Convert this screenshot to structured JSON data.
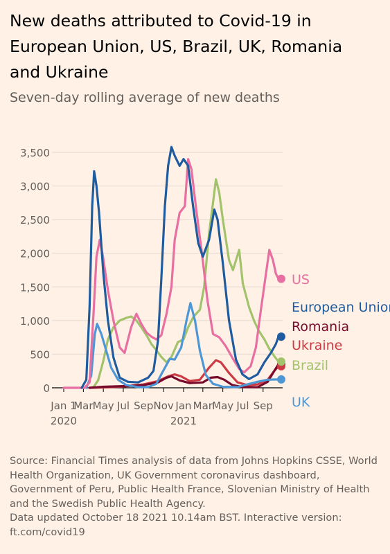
{
  "header": {
    "title": "New deaths attributed to Covid-19 in European Union, US, Brazil, UK, Romania and Ukraine",
    "subtitle": "Seven-day rolling average of new deaths"
  },
  "footer": {
    "source": "Source: Financial Times analysis of data from Johns Hopkins CSSE, World Health Organization, UK Government coronavirus dashboard, Government of Peru, Public Health France, Slovenian Ministry of Health and the Swedish Public Health Agency.",
    "updated": "Data updated October 18 2021 10.14am BST. Interactive version: ft.com/covid19"
  },
  "chart_data": {
    "type": "line",
    "xlim": [
      "2020-01-01",
      "2021-10-18"
    ],
    "ylim": [
      0,
      3500
    ],
    "yticks": [
      0,
      500,
      1000,
      1500,
      2000,
      2500,
      3000,
      3500
    ],
    "ytick_labels": [
      "0",
      "500",
      "1,000",
      "1,500",
      "2,000",
      "2,500",
      "3,000",
      "3,500"
    ],
    "xticks": [
      {
        "date": "2020-01-01",
        "label": "Jan 1",
        "year": "2020"
      },
      {
        "date": "2020-03-01",
        "label": "Mar",
        "year": ""
      },
      {
        "date": "2020-05-01",
        "label": "May",
        "year": ""
      },
      {
        "date": "2020-07-01",
        "label": "Jul",
        "year": ""
      },
      {
        "date": "2020-09-01",
        "label": "Sep",
        "year": ""
      },
      {
        "date": "2020-11-01",
        "label": "Nov",
        "year": ""
      },
      {
        "date": "2021-01-01",
        "label": "Jan",
        "year": "2021"
      },
      {
        "date": "2021-03-01",
        "label": "Mar",
        "year": ""
      },
      {
        "date": "2021-05-01",
        "label": "May",
        "year": ""
      },
      {
        "date": "2021-07-01",
        "label": "Jul",
        "year": ""
      },
      {
        "date": "2021-09-01",
        "label": "Sep",
        "year": ""
      }
    ],
    "grid": true,
    "legend": "direct labels at right",
    "series": [
      {
        "name": "Brazil",
        "color": "#a2c26b",
        "points": [
          [
            "2020-03-20",
            0
          ],
          [
            "2020-04-01",
            10
          ],
          [
            "2020-04-15",
            110
          ],
          [
            "2020-05-01",
            400
          ],
          [
            "2020-05-15",
            720
          ],
          [
            "2020-06-01",
            900
          ],
          [
            "2020-06-20",
            1000
          ],
          [
            "2020-07-10",
            1040
          ],
          [
            "2020-07-25",
            1060
          ],
          [
            "2020-08-10",
            1000
          ],
          [
            "2020-08-25",
            900
          ],
          [
            "2020-09-10",
            780
          ],
          [
            "2020-09-25",
            650
          ],
          [
            "2020-10-10",
            560
          ],
          [
            "2020-10-25",
            460
          ],
          [
            "2020-11-10",
            380
          ],
          [
            "2020-11-25",
            460
          ],
          [
            "2020-12-15",
            680
          ],
          [
            "2021-01-01",
            720
          ],
          [
            "2021-01-15",
            900
          ],
          [
            "2021-02-01",
            1060
          ],
          [
            "2021-02-20",
            1160
          ],
          [
            "2021-03-05",
            1500
          ],
          [
            "2021-03-20",
            2300
          ],
          [
            "2021-04-01",
            2750
          ],
          [
            "2021-04-10",
            3100
          ],
          [
            "2021-04-20",
            2900
          ],
          [
            "2021-05-01",
            2500
          ],
          [
            "2021-05-20",
            1900
          ],
          [
            "2021-06-01",
            1750
          ],
          [
            "2021-06-20",
            2050
          ],
          [
            "2021-07-01",
            1550
          ],
          [
            "2021-07-20",
            1200
          ],
          [
            "2021-08-05",
            990
          ],
          [
            "2021-08-20",
            840
          ],
          [
            "2021-09-05",
            720
          ],
          [
            "2021-09-20",
            580
          ],
          [
            "2021-10-05",
            470
          ],
          [
            "2021-10-18",
            390
          ]
        ]
      },
      {
        "name": "Ukraine",
        "color": "#cc3a44",
        "points": [
          [
            "2020-03-20",
            0
          ],
          [
            "2020-05-01",
            5
          ],
          [
            "2020-07-01",
            20
          ],
          [
            "2020-09-01",
            50
          ],
          [
            "2020-10-15",
            100
          ],
          [
            "2020-11-15",
            170
          ],
          [
            "2020-12-05",
            200
          ],
          [
            "2020-12-25",
            170
          ],
          [
            "2021-01-20",
            100
          ],
          [
            "2021-02-20",
            120
          ],
          [
            "2021-03-20",
            300
          ],
          [
            "2021-04-10",
            410
          ],
          [
            "2021-04-25",
            380
          ],
          [
            "2021-05-20",
            220
          ],
          [
            "2021-06-15",
            80
          ],
          [
            "2021-07-15",
            40
          ],
          [
            "2021-08-15",
            50
          ],
          [
            "2021-09-15",
            120
          ],
          [
            "2021-10-05",
            250
          ],
          [
            "2021-10-18",
            320
          ]
        ]
      },
      {
        "name": "Romania",
        "color": "#780a2c",
        "points": [
          [
            "2020-03-20",
            0
          ],
          [
            "2020-05-01",
            15
          ],
          [
            "2020-07-01",
            25
          ],
          [
            "2020-09-01",
            40
          ],
          [
            "2020-10-15",
            80
          ],
          [
            "2020-11-10",
            150
          ],
          [
            "2020-11-25",
            170
          ],
          [
            "2020-12-20",
            110
          ],
          [
            "2021-01-20",
            70
          ],
          [
            "2021-03-01",
            80
          ],
          [
            "2021-03-25",
            150
          ],
          [
            "2021-04-15",
            160
          ],
          [
            "2021-05-05",
            120
          ],
          [
            "2021-05-30",
            40
          ],
          [
            "2021-07-01",
            10
          ],
          [
            "2021-08-15",
            8
          ],
          [
            "2021-09-15",
            90
          ],
          [
            "2021-10-05",
            250
          ],
          [
            "2021-10-18",
            350
          ]
        ]
      },
      {
        "name": "UK",
        "color": "#4e97d7",
        "points": [
          [
            "2020-03-10",
            0
          ],
          [
            "2020-03-25",
            180
          ],
          [
            "2020-04-05",
            800
          ],
          [
            "2020-04-12",
            950
          ],
          [
            "2020-04-25",
            800
          ],
          [
            "2020-05-10",
            550
          ],
          [
            "2020-05-25",
            300
          ],
          [
            "2020-06-15",
            120
          ],
          [
            "2020-07-10",
            40
          ],
          [
            "2020-08-15",
            10
          ],
          [
            "2020-09-15",
            10
          ],
          [
            "2020-10-10",
            60
          ],
          [
            "2020-10-25",
            200
          ],
          [
            "2020-11-20",
            430
          ],
          [
            "2020-12-05",
            420
          ],
          [
            "2020-12-25",
            600
          ],
          [
            "2021-01-10",
            1000
          ],
          [
            "2021-01-22",
            1260
          ],
          [
            "2021-02-05",
            1000
          ],
          [
            "2021-02-20",
            550
          ],
          [
            "2021-03-10",
            190
          ],
          [
            "2021-04-01",
            60
          ],
          [
            "2021-05-01",
            15
          ],
          [
            "2021-06-15",
            10
          ],
          [
            "2021-07-15",
            50
          ],
          [
            "2021-08-15",
            90
          ],
          [
            "2021-09-15",
            120
          ],
          [
            "2021-10-18",
            125
          ]
        ]
      },
      {
        "name": "US",
        "color": "#e86fa1",
        "points": [
          [
            "2020-01-01",
            0
          ],
          [
            "2020-03-05",
            0
          ],
          [
            "2020-03-20",
            80
          ],
          [
            "2020-04-01",
            1100
          ],
          [
            "2020-04-10",
            1950
          ],
          [
            "2020-04-20",
            2200
          ],
          [
            "2020-04-30",
            1950
          ],
          [
            "2020-05-15",
            1450
          ],
          [
            "2020-06-01",
            1000
          ],
          [
            "2020-06-20",
            600
          ],
          [
            "2020-07-05",
            520
          ],
          [
            "2020-07-25",
            900
          ],
          [
            "2020-08-10",
            1100
          ],
          [
            "2020-08-25",
            950
          ],
          [
            "2020-09-10",
            820
          ],
          [
            "2020-09-25",
            760
          ],
          [
            "2020-10-10",
            720
          ],
          [
            "2020-10-25",
            780
          ],
          [
            "2020-11-10",
            1100
          ],
          [
            "2020-11-25",
            1500
          ],
          [
            "2020-12-05",
            2200
          ],
          [
            "2020-12-20",
            2600
          ],
          [
            "2021-01-05",
            2700
          ],
          [
            "2021-01-15",
            3400
          ],
          [
            "2021-01-25",
            3250
          ],
          [
            "2021-02-10",
            2600
          ],
          [
            "2021-02-25",
            2050
          ],
          [
            "2021-03-15",
            1300
          ],
          [
            "2021-04-01",
            800
          ],
          [
            "2021-04-20",
            750
          ],
          [
            "2021-05-10",
            620
          ],
          [
            "2021-06-01",
            430
          ],
          [
            "2021-06-20",
            280
          ],
          [
            "2021-07-05",
            230
          ],
          [
            "2021-07-25",
            320
          ],
          [
            "2021-08-10",
            600
          ],
          [
            "2021-08-25",
            1150
          ],
          [
            "2021-09-10",
            1700
          ],
          [
            "2021-09-20",
            2050
          ],
          [
            "2021-10-01",
            1900
          ],
          [
            "2021-10-10",
            1700
          ],
          [
            "2021-10-18",
            1620
          ]
        ]
      },
      {
        "name": "European Union",
        "color": "#1f5b9f",
        "points": [
          [
            "2020-02-25",
            0
          ],
          [
            "2020-03-10",
            120
          ],
          [
            "2020-03-20",
            1200
          ],
          [
            "2020-03-28",
            2700
          ],
          [
            "2020-04-03",
            3220
          ],
          [
            "2020-04-10",
            3000
          ],
          [
            "2020-04-18",
            2600
          ],
          [
            "2020-05-01",
            1700
          ],
          [
            "2020-05-15",
            1000
          ],
          [
            "2020-06-01",
            450
          ],
          [
            "2020-06-20",
            150
          ],
          [
            "2020-07-15",
            90
          ],
          [
            "2020-08-15",
            80
          ],
          [
            "2020-09-15",
            150
          ],
          [
            "2020-10-01",
            250
          ],
          [
            "2020-10-15",
            700
          ],
          [
            "2020-10-25",
            1600
          ],
          [
            "2020-11-05",
            2700
          ],
          [
            "2020-11-15",
            3300
          ],
          [
            "2020-11-25",
            3580
          ],
          [
            "2020-12-05",
            3450
          ],
          [
            "2020-12-20",
            3300
          ],
          [
            "2021-01-01",
            3400
          ],
          [
            "2021-01-15",
            3300
          ],
          [
            "2021-01-30",
            2700
          ],
          [
            "2021-02-15",
            2150
          ],
          [
            "2021-03-01",
            1950
          ],
          [
            "2021-03-20",
            2200
          ],
          [
            "2021-04-05",
            2650
          ],
          [
            "2021-04-15",
            2500
          ],
          [
            "2021-05-01",
            1850
          ],
          [
            "2021-05-20",
            1000
          ],
          [
            "2021-06-10",
            420
          ],
          [
            "2021-06-30",
            200
          ],
          [
            "2021-07-20",
            130
          ],
          [
            "2021-08-15",
            200
          ],
          [
            "2021-09-05",
            380
          ],
          [
            "2021-09-25",
            520
          ],
          [
            "2021-10-10",
            650
          ],
          [
            "2021-10-18",
            760
          ]
        ]
      }
    ],
    "labels": [
      {
        "name": "US",
        "color": "#e86fa1",
        "end_value": 1620
      },
      {
        "name": "European Union",
        "color": "#1f5b9f",
        "end_value": 760
      },
      {
        "name": "Romania",
        "color": "#780a2c",
        "end_value": 350
      },
      {
        "name": "Ukraine",
        "color": "#cc3a44",
        "end_value": 320
      },
      {
        "name": "Brazil",
        "color": "#a2c26b",
        "end_value": 390
      },
      {
        "name": "UK",
        "color": "#4e97d7",
        "end_value": 125
      }
    ],
    "label_text": {
      "US": "US",
      "European Union": "European Union",
      "Romania": "Romania",
      "Ukraine": "Ukraine",
      "Brazil": "Brazil",
      "UK": "UK"
    }
  }
}
